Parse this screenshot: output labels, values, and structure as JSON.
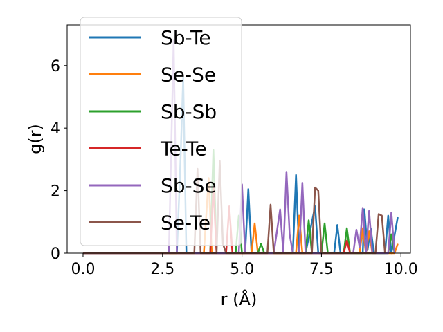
{
  "chart_data": {
    "type": "line",
    "xlabel": "r (Å)",
    "ylabel": "g(r)",
    "xlim": [
      -0.5,
      10.3
    ],
    "ylim": [
      0,
      7.3
    ],
    "xticks": [
      0.0,
      2.5,
      5.0,
      7.5,
      10.0
    ],
    "xtick_labels": [
      "0.0",
      "2.5",
      "5.0",
      "7.5",
      "10.0"
    ],
    "yticks": [
      0,
      2,
      4,
      6
    ],
    "ytick_labels": [
      "0",
      "2",
      "4",
      "6"
    ],
    "grid": false,
    "legend_position": "top-left",
    "series": [
      {
        "name": "Sb-Te",
        "color": "#1f77b4",
        "points": [
          [
            0,
            0
          ],
          [
            2.95,
            0
          ],
          [
            3.05,
            2.5
          ],
          [
            3.15,
            5.6
          ],
          [
            3.25,
            0
          ],
          [
            5.1,
            0
          ],
          [
            5.2,
            2.05
          ],
          [
            5.3,
            0
          ],
          [
            6.6,
            0
          ],
          [
            6.7,
            2.5
          ],
          [
            6.8,
            0
          ],
          [
            7.0,
            0
          ],
          [
            7.3,
            1.5
          ],
          [
            7.4,
            0
          ],
          [
            7.9,
            0
          ],
          [
            8.0,
            0.9
          ],
          [
            8.1,
            0
          ],
          [
            8.8,
            0
          ],
          [
            8.85,
            1.4
          ],
          [
            8.95,
            0.1
          ],
          [
            9.05,
            0.8
          ],
          [
            9.15,
            0
          ],
          [
            9.5,
            0
          ],
          [
            9.6,
            1.2
          ],
          [
            9.7,
            0
          ],
          [
            9.9,
            1.15
          ]
        ]
      },
      {
        "name": "Se-Se",
        "color": "#ff7f0e",
        "points": [
          [
            0,
            0
          ],
          [
            3.8,
            0
          ],
          [
            3.95,
            2.4
          ],
          [
            4.05,
            0
          ],
          [
            5.3,
            0
          ],
          [
            5.4,
            0.95
          ],
          [
            5.5,
            0
          ],
          [
            6.7,
            0
          ],
          [
            6.8,
            1.2
          ],
          [
            6.9,
            0
          ],
          [
            8.7,
            0
          ],
          [
            8.8,
            0.8
          ],
          [
            8.9,
            0
          ],
          [
            9.0,
            0.7
          ],
          [
            9.1,
            0
          ],
          [
            9.8,
            0
          ],
          [
            9.9,
            0.3
          ]
        ]
      },
      {
        "name": "Sb-Sb",
        "color": "#2ca02c",
        "points": [
          [
            0,
            0
          ],
          [
            4.0,
            0
          ],
          [
            4.1,
            3.3
          ],
          [
            4.2,
            0
          ],
          [
            4.8,
            0
          ],
          [
            4.9,
            1.2
          ],
          [
            5.0,
            0
          ],
          [
            5.5,
            0
          ],
          [
            5.6,
            0.3
          ],
          [
            5.7,
            0
          ],
          [
            7.0,
            0
          ],
          [
            7.1,
            1.05
          ],
          [
            7.2,
            0
          ],
          [
            7.5,
            0
          ],
          [
            7.6,
            0.95
          ],
          [
            7.7,
            0
          ],
          [
            8.2,
            0
          ],
          [
            8.3,
            0.8
          ],
          [
            8.4,
            0
          ],
          [
            9.6,
            0
          ],
          [
            9.7,
            0.6
          ],
          [
            9.8,
            0
          ]
        ]
      },
      {
        "name": "Te-Te",
        "color": "#d62728",
        "points": [
          [
            0,
            0
          ],
          [
            4.0,
            0
          ],
          [
            4.1,
            2.1
          ],
          [
            4.2,
            0
          ],
          [
            4.5,
            0
          ],
          [
            4.6,
            1.5
          ],
          [
            4.7,
            0
          ],
          [
            8.2,
            0
          ],
          [
            8.3,
            0.4
          ],
          [
            8.4,
            0
          ]
        ]
      },
      {
        "name": "Sb-Se",
        "color": "#9467bd",
        "points": [
          [
            0,
            0
          ],
          [
            2.7,
            0
          ],
          [
            2.85,
            6.8
          ],
          [
            2.95,
            0
          ],
          [
            4.9,
            0
          ],
          [
            5.0,
            2.2
          ],
          [
            5.1,
            0
          ],
          [
            6.0,
            0
          ],
          [
            6.2,
            1.4
          ],
          [
            6.3,
            0
          ],
          [
            6.4,
            2.6
          ],
          [
            6.5,
            0.6
          ],
          [
            6.6,
            0
          ],
          [
            6.8,
            0
          ],
          [
            6.9,
            2.25
          ],
          [
            7.0,
            0
          ],
          [
            8.5,
            0
          ],
          [
            8.6,
            0.75
          ],
          [
            8.7,
            0.2
          ],
          [
            8.8,
            1.45
          ],
          [
            8.9,
            0
          ],
          [
            9.0,
            1.35
          ],
          [
            9.1,
            0
          ],
          [
            9.6,
            0
          ],
          [
            9.7,
            1.3
          ],
          [
            9.8,
            0
          ]
        ]
      },
      {
        "name": "Se-Te",
        "color": "#8c564b",
        "points": [
          [
            0,
            0
          ],
          [
            3.5,
            0
          ],
          [
            3.6,
            2.7
          ],
          [
            3.7,
            0
          ],
          [
            4.2,
            0
          ],
          [
            4.3,
            2.95
          ],
          [
            4.4,
            0.3
          ],
          [
            4.5,
            0
          ],
          [
            5.8,
            0
          ],
          [
            5.9,
            1.55
          ],
          [
            6.0,
            0
          ],
          [
            7.2,
            0
          ],
          [
            7.3,
            2.1
          ],
          [
            7.4,
            2.0
          ],
          [
            7.5,
            0
          ],
          [
            9.2,
            0
          ],
          [
            9.3,
            1.25
          ],
          [
            9.4,
            1.2
          ],
          [
            9.5,
            0
          ]
        ]
      }
    ]
  }
}
